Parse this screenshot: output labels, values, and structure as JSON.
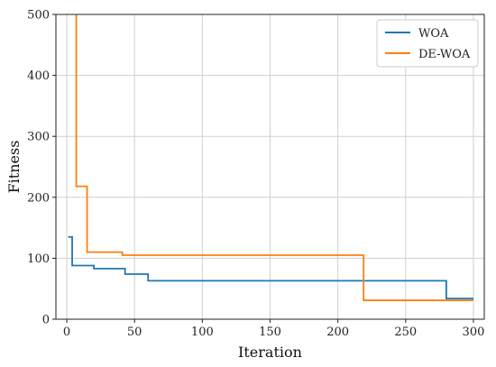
{
  "chart_data": {
    "type": "line",
    "title": "",
    "xlabel": "Iteration",
    "ylabel": "Fitness",
    "xlim": [
      -8,
      308
    ],
    "ylim": [
      0,
      500
    ],
    "xticks": [
      0,
      50,
      100,
      150,
      200,
      250,
      300
    ],
    "yticks": [
      0,
      100,
      200,
      300,
      400,
      500
    ],
    "grid": true,
    "legend": "top-right",
    "step": true,
    "series": [
      {
        "name": "WOA",
        "color": "#1f77b4",
        "points": [
          [
            1,
            135
          ],
          [
            4,
            135
          ],
          [
            4,
            88
          ],
          [
            20,
            88
          ],
          [
            20,
            83
          ],
          [
            43,
            83
          ],
          [
            43,
            74
          ],
          [
            60,
            74
          ],
          [
            60,
            63
          ],
          [
            280,
            63
          ],
          [
            280,
            34
          ],
          [
            300,
            34
          ]
        ]
      },
      {
        "name": "DE-WOA",
        "color": "#ff7f0e",
        "points": [
          [
            6,
            520
          ],
          [
            7,
            520
          ],
          [
            7,
            218
          ],
          [
            15,
            218
          ],
          [
            15,
            110
          ],
          [
            41,
            110
          ],
          [
            41,
            105
          ],
          [
            219,
            105
          ],
          [
            219,
            31
          ],
          [
            300,
            31
          ]
        ]
      }
    ]
  }
}
